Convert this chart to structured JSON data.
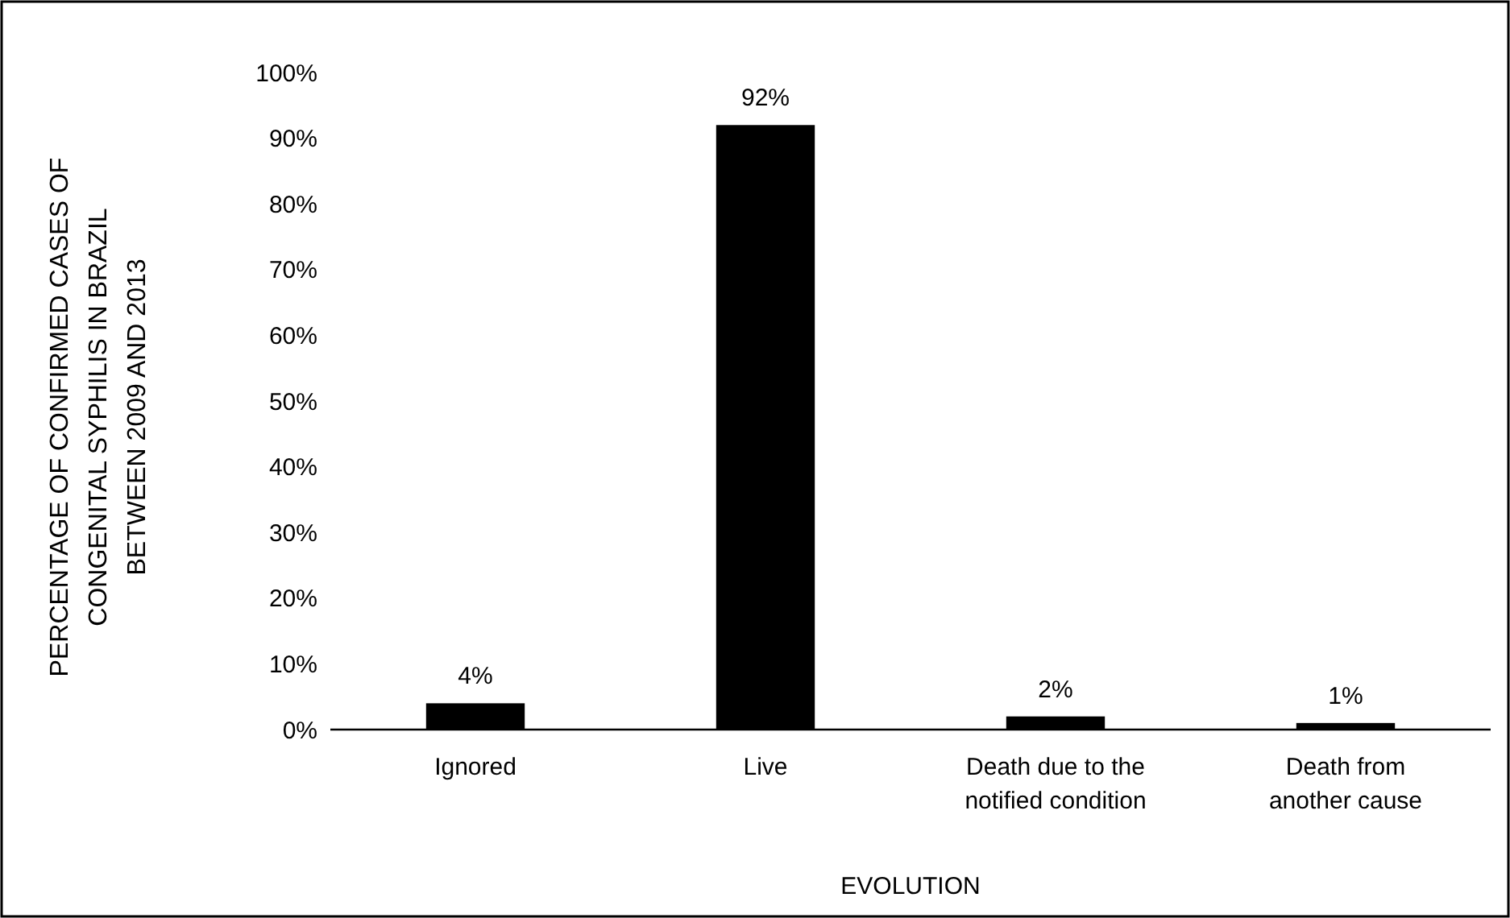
{
  "chart_data": {
    "type": "bar",
    "xlabel": "EVOLUTION",
    "ylabel": "PERCENTAGE OF CONFIRMED CASES OF\nCONGENITAL SYPHILIS IN BRAZIL\nBETWEEN 2009 AND 2013",
    "categories": [
      "Ignored",
      "Live",
      "Death due to the\nnotified condition",
      "Death from\nanother cause"
    ],
    "values": [
      4,
      92,
      2,
      1
    ],
    "value_labels": [
      "4%",
      "92%",
      "2%",
      "1%"
    ],
    "color": "#000000",
    "ylim": [
      0,
      100
    ],
    "yticks": [
      {
        "value": 0,
        "label": "0%"
      },
      {
        "value": 10,
        "label": "10%"
      },
      {
        "value": 20,
        "label": "20%"
      },
      {
        "value": 30,
        "label": "30%"
      },
      {
        "value": 40,
        "label": "40%"
      },
      {
        "value": 50,
        "label": "50%"
      },
      {
        "value": 60,
        "label": "60%"
      },
      {
        "value": 70,
        "label": "70%"
      },
      {
        "value": 80,
        "label": "80%"
      },
      {
        "value": 90,
        "label": "90%"
      },
      {
        "value": 100,
        "label": "100%"
      }
    ],
    "grid": false
  }
}
